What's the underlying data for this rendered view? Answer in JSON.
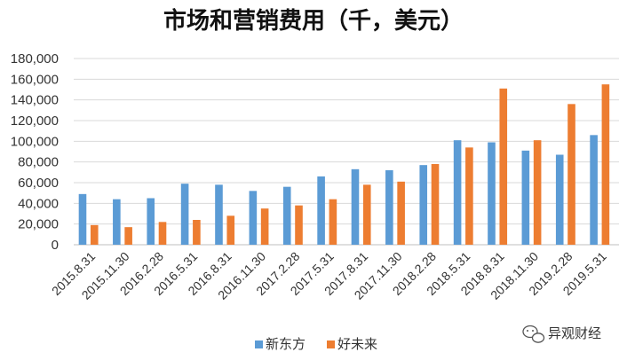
{
  "chart_data": {
    "type": "bar",
    "title": "市场和营销费用（千，美元）",
    "categories": [
      "2015.8.31",
      "2015.11.30",
      "2016.2.28",
      "2016.5.31",
      "2016.8.31",
      "2016.11.30",
      "2017.2.28",
      "2017.5.31",
      "2017.8.31",
      "2017.11.30",
      "2018.2.28",
      "2018.5.31",
      "2018.8.31",
      "2018.11.30",
      "2019.2.28",
      "2019.5.31"
    ],
    "series": [
      {
        "name": "新东方",
        "color": "#5b9bd5",
        "values": [
          49000,
          44000,
          45000,
          59000,
          58000,
          52000,
          56000,
          66000,
          73000,
          72000,
          77000,
          101000,
          99000,
          91000,
          87000,
          106000
        ]
      },
      {
        "name": "好未来",
        "color": "#ed7d31",
        "values": [
          19000,
          17000,
          22000,
          24000,
          28000,
          35000,
          38000,
          44000,
          58000,
          61000,
          78000,
          94000,
          151000,
          101000,
          136000,
          155000
        ]
      }
    ],
    "y_ticks": [
      "0",
      "20,000",
      "40,000",
      "60,000",
      "80,000",
      "100,000",
      "120,000",
      "140,000",
      "160,000",
      "180,000"
    ],
    "ylim": [
      0,
      180000
    ],
    "grid": true,
    "legend_position": "bottom"
  },
  "watermark": {
    "text": "异观财经",
    "icon": "wechat-icon"
  }
}
